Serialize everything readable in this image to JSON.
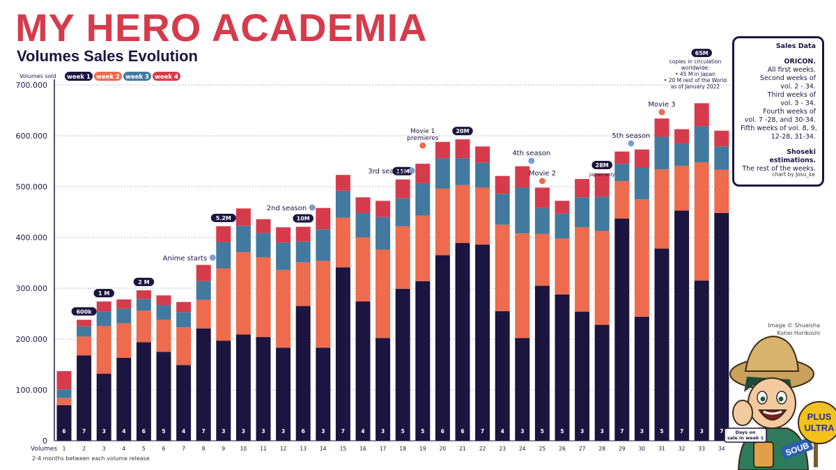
{
  "title": "MY HERO ACADEMIA",
  "subtitle": "Volumes Sales Evolution",
  "footnote": "2-4 months between each volume release",
  "image_credit": [
    "Image © Shueisha",
    "Kohei Horikoshi"
  ],
  "mascot": {
    "label": [
      "Days on",
      "sale in week 1"
    ],
    "fan_text": [
      "PLUS",
      "ULTRA"
    ],
    "tag_text": "SOUB"
  },
  "sales_box": {
    "heading": "Sales Data",
    "oricon_title": "ORICON.",
    "oricon_lines": [
      "All first weeks.",
      "Second weeks of",
      "vol. 2 - 34.",
      "Third weeks of",
      "vol.  3 - 34.",
      "Fourth weeks of",
      "vol. 7 -28, and 30-34.",
      "Fifth weeks of vol. 8, 9,",
      "12-28, 31-34."
    ],
    "shoseki_title": "Shoseki estimations.",
    "shoseki_lines": [
      "The rest of the weeks."
    ],
    "credit": "chart by Josu_ke"
  },
  "colors": {
    "week1": "#1b1540",
    "week2": "#ee6b4e",
    "week3": "#427a9f",
    "week4": "#d63b4c",
    "title": "#d63b4c",
    "event_blue": "#7f9ccc",
    "event_orange": "#ee6b4e"
  },
  "chart_data": {
    "type": "bar",
    "stacked": true,
    "ylabel": "Volumes sold",
    "xlabel": "Volumes",
    "ylim": [
      0,
      700000
    ],
    "yticks": [
      "0",
      "100.000",
      "200.000",
      "300.000",
      "400.000",
      "500.000",
      "600.000",
      "700.000"
    ],
    "ytick_values": [
      0,
      100000,
      200000,
      300000,
      400000,
      500000,
      600000,
      700000
    ],
    "grid": "horizontal dotted",
    "legend_position": "top-left",
    "categories": [
      "1",
      "2",
      "3",
      "4",
      "5",
      "6",
      "7",
      "8",
      "9",
      "10",
      "11",
      "12",
      "13",
      "14",
      "15",
      "16",
      "17",
      "18",
      "19",
      "20",
      "21",
      "22",
      "23",
      "24",
      "25",
      "26",
      "27",
      "28",
      "29",
      "30",
      "31",
      "32",
      "33",
      "34"
    ],
    "series": [
      {
        "name": "week 1",
        "color": "#1b1540",
        "values": [
          70000,
          168000,
          132000,
          163000,
          194000,
          175000,
          149000,
          221000,
          197000,
          209000,
          204000,
          183000,
          265000,
          183000,
          341000,
          274000,
          202000,
          299000,
          314000,
          365000,
          389000,
          386000,
          255000,
          202000,
          305000,
          288000,
          254000,
          228000,
          437000,
          244000,
          378000,
          453000,
          315000,
          448000
        ]
      },
      {
        "name": "week 2",
        "color": "#ee6b4e",
        "values": [
          14000,
          37000,
          94000,
          68000,
          62000,
          63000,
          74000,
          56000,
          142000,
          162000,
          157000,
          153000,
          86000,
          171000,
          98000,
          126000,
          174000,
          123000,
          129000,
          131000,
          114000,
          112000,
          170000,
          206000,
          102000,
          110000,
          166000,
          185000,
          74000,
          231000,
          156000,
          88000,
          233000,
          85000
        ]
      },
      {
        "name": "week 3",
        "color": "#427a9f",
        "values": [
          17000,
          20000,
          28000,
          29000,
          23000,
          29000,
          30000,
          37000,
          52000,
          52000,
          48000,
          54000,
          41000,
          62000,
          53000,
          48000,
          64000,
          55000,
          64000,
          60000,
          53000,
          49000,
          61000,
          90000,
          51000,
          49000,
          59000,
          67000,
          34000,
          62000,
          64000,
          44000,
          71000,
          46000
        ]
      },
      {
        "name": "week 4",
        "color": "#d63b4c",
        "values": [
          36000,
          13000,
          20000,
          18000,
          17000,
          19000,
          20000,
          32000,
          31000,
          34000,
          27000,
          30000,
          29000,
          42000,
          31000,
          31000,
          32000,
          37000,
          38000,
          32000,
          37000,
          32000,
          35000,
          42000,
          40000,
          25000,
          36000,
          46000,
          24000,
          36000,
          36000,
          28000,
          45000,
          31000
        ]
      }
    ],
    "days_on_sale_week1": [
      "6",
      "7",
      "3",
      "4",
      "6",
      "5",
      "4",
      "7",
      "3",
      "3",
      "3",
      "3",
      "6",
      "3",
      "7",
      "4",
      "3",
      "5",
      "5",
      "6",
      "6",
      "7",
      "4",
      "3",
      "5",
      "5",
      "3",
      "3",
      "7",
      "3",
      "5",
      "7",
      "3",
      "7"
    ],
    "milestones": [
      {
        "volume": "2",
        "label": "600k"
      },
      {
        "volume": "3",
        "label": "1 M"
      },
      {
        "volume": "5",
        "label": "2 M"
      },
      {
        "volume": "9",
        "label": "5.2M"
      },
      {
        "volume": "13",
        "label": "10M"
      },
      {
        "volume": "18",
        "label": "15M"
      },
      {
        "volume": "21",
        "label": "20M"
      },
      {
        "volume": "28",
        "label": "28M",
        "note": "Japan only"
      },
      {
        "volume": "33",
        "label": "65M"
      }
    ],
    "milestone_65m_notes": [
      "copies in circulation",
      "worldwide:",
      "• 45 M in Japan",
      "• 20 M rest of the World",
      "as of January 2022"
    ],
    "events": [
      {
        "after_volume": "8",
        "label": "Anime starts",
        "color": "blue"
      },
      {
        "after_volume": "13",
        "label": "2nd season",
        "color": "blue"
      },
      {
        "after_volume": "18",
        "label": "3rd season",
        "color": "blue"
      },
      {
        "after_volume": "19",
        "label": "Movie 1 premieres",
        "color": "orange"
      },
      {
        "after_volume": "24",
        "label": "4th season",
        "color": "blue"
      },
      {
        "after_volume": "25",
        "label": "Movie 2",
        "color": "orange"
      },
      {
        "after_volume": "29",
        "label": "5th season",
        "color": "blue"
      },
      {
        "after_volume": "31",
        "label": "Movie 3",
        "color": "orange"
      }
    ]
  }
}
